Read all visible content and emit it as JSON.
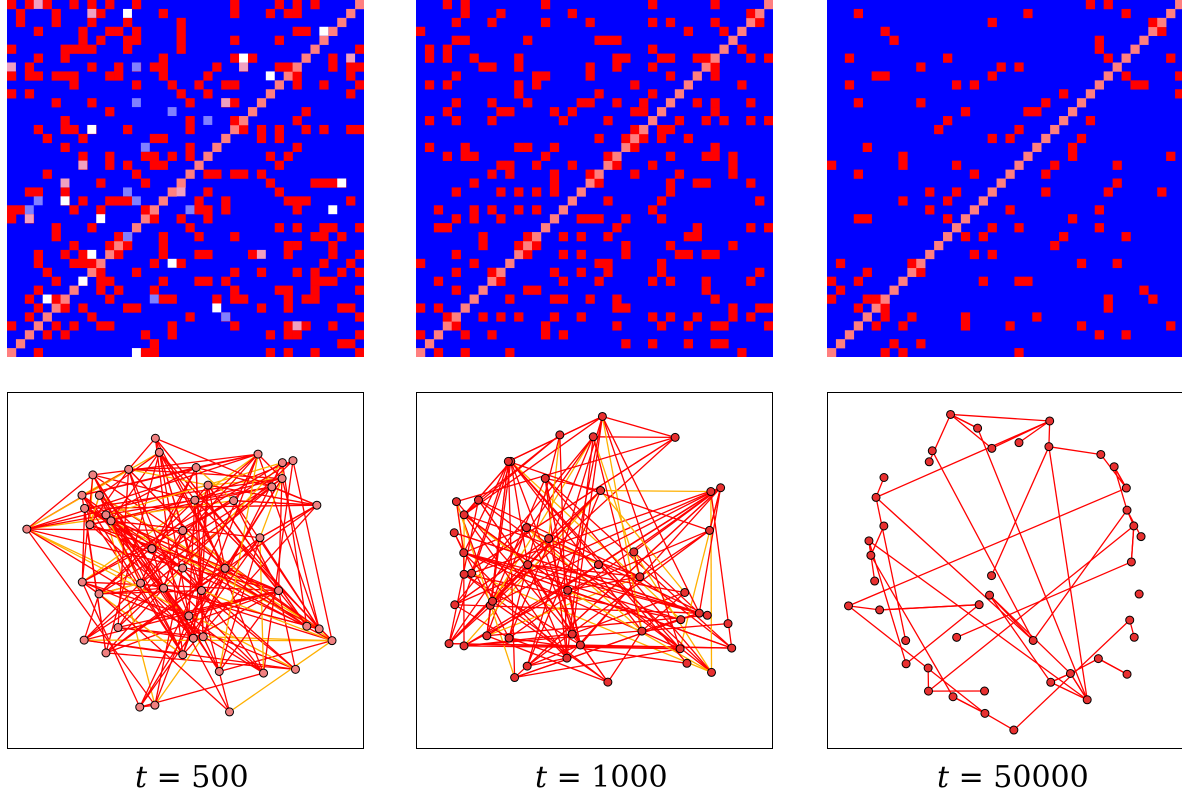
{
  "colors": {
    "background": "#0000ff",
    "edge": "#ff0000",
    "diagonal": "#ff7f7f",
    "weak_edge": "#ffb000",
    "node_fill": "#ff6060",
    "node_stroke": "#000000"
  },
  "panels": [
    {
      "t_label": "t",
      "equals": "=",
      "t_value": "500",
      "node_fill": "#f08080",
      "has_weak_edges": true
    },
    {
      "t_label": "t",
      "equals": "=",
      "t_value": "1000",
      "node_fill": "#e83030",
      "has_weak_edges": true
    },
    {
      "t_label": "t",
      "equals": "=",
      "t_value": "50000",
      "node_fill": "#e83030",
      "has_weak_edges": false
    }
  ]
}
